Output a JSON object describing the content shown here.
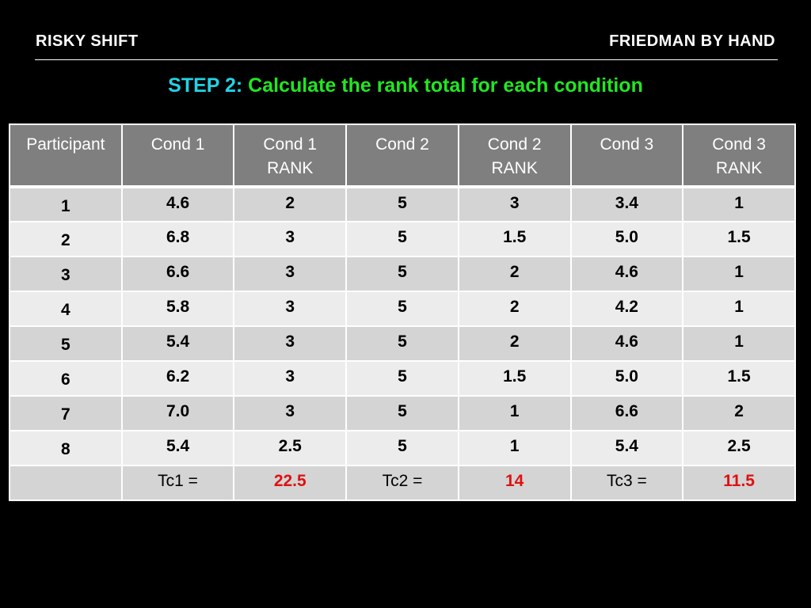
{
  "header": {
    "left_title": "RISKY SHIFT",
    "right_title": "FRIEDMAN BY HAND"
  },
  "step": {
    "label": "STEP 2:",
    "text": "Calculate the rank total for each condition"
  },
  "table": {
    "columns": [
      [
        "Participant"
      ],
      [
        "Cond 1"
      ],
      [
        "Cond 1",
        "RANK"
      ],
      [
        "Cond 2"
      ],
      [
        "Cond 2",
        "RANK"
      ],
      [
        "Cond 3"
      ],
      [
        "Cond 3",
        "RANK"
      ]
    ],
    "rows": [
      [
        "1",
        "4.6",
        "2",
        "5",
        "3",
        "3.4",
        "1"
      ],
      [
        "2",
        "6.8",
        "3",
        "5",
        "1.5",
        "5.0",
        "1.5"
      ],
      [
        "3",
        "6.6",
        "3",
        "5",
        "2",
        "4.6",
        "1"
      ],
      [
        "4",
        "5.8",
        "3",
        "5",
        "2",
        "4.2",
        "1"
      ],
      [
        "5",
        "5.4",
        "3",
        "5",
        "2",
        "4.6",
        "1"
      ],
      [
        "6",
        "6.2",
        "3",
        "5",
        "1.5",
        "5.0",
        "1.5"
      ],
      [
        "7",
        "7.0",
        "3",
        "5",
        "1",
        "6.6",
        "2"
      ],
      [
        "8",
        "5.4",
        "2.5",
        "5",
        "1",
        "5.4",
        "2.5"
      ]
    ],
    "totals": {
      "tc1_label": "Tc1 =",
      "tc1_value": "22.5",
      "tc2_label": "Tc2 =",
      "tc2_value": "14",
      "tc3_label": "Tc3 =",
      "tc3_value": "11.5"
    }
  },
  "colors": {
    "background": "#000000",
    "step_label": "#22d3e6",
    "step_text": "#22e622",
    "header_cell": "#7f7f7f",
    "row_dark": "#d4d4d4",
    "row_light": "#ececec",
    "total_value": "#e01010"
  }
}
